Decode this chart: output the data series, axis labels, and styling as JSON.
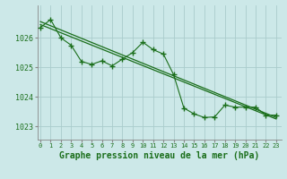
{
  "background_color": "#cce8e8",
  "grid_color": "#aacccc",
  "line_color": "#1a6e1a",
  "xlabel": "Graphe pression niveau de la mer (hPa)",
  "xlabel_fontsize": 7,
  "ylabel_ticks": [
    1023,
    1024,
    1025,
    1026
  ],
  "xlim": [
    -0.3,
    23.5
  ],
  "ylim": [
    1022.55,
    1027.1
  ],
  "x_ticks": [
    0,
    1,
    2,
    3,
    4,
    5,
    6,
    7,
    8,
    9,
    10,
    11,
    12,
    13,
    14,
    15,
    16,
    17,
    18,
    19,
    20,
    21,
    22,
    23
  ],
  "tick_fontsize": 5,
  "ytick_fontsize": 6,
  "series_wiggly": {
    "x": [
      0,
      1,
      2,
      3,
      4,
      5,
      6,
      7,
      8,
      9,
      10,
      11,
      12,
      13,
      14,
      15,
      16,
      17,
      18,
      19,
      20,
      21,
      22,
      23
    ],
    "y": [
      1026.35,
      1026.62,
      1026.0,
      1025.75,
      1025.2,
      1025.1,
      1025.22,
      1025.05,
      1025.28,
      1025.5,
      1025.85,
      1025.6,
      1025.45,
      1024.75,
      1023.62,
      1023.42,
      1023.3,
      1023.32,
      1023.72,
      1023.65,
      1023.65,
      1023.65,
      1023.38,
      1023.38
    ]
  },
  "series_straight1": {
    "x": [
      0,
      23
    ],
    "y": [
      1026.55,
      1023.3
    ]
  },
  "series_straight2": {
    "x": [
      0,
      23
    ],
    "y": [
      1026.45,
      1023.25
    ]
  },
  "series_markers": {
    "x": [
      1,
      2,
      3,
      4,
      5,
      6,
      7,
      8,
      9,
      10,
      11,
      12,
      13,
      14,
      15,
      16,
      17,
      18,
      19,
      20,
      21,
      22,
      23
    ],
    "y": [
      1026.62,
      1026.0,
      1025.75,
      1025.2,
      1025.1,
      1025.22,
      1025.05,
      1025.28,
      1025.5,
      1025.85,
      1025.6,
      1025.45,
      1024.75,
      1023.62,
      1023.42,
      1023.3,
      1023.32,
      1023.72,
      1023.65,
      1023.65,
      1023.65,
      1023.38,
      1023.38
    ]
  }
}
